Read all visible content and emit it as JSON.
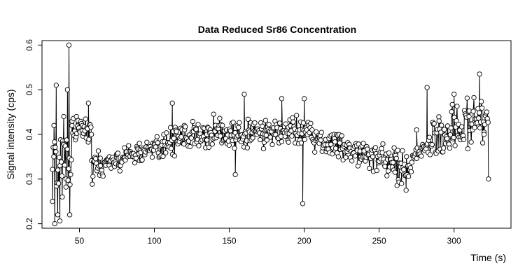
{
  "chart_data": {
    "type": "line",
    "title": "Data Reduced Sr86 Concentration",
    "xlabel": "Time (s)",
    "ylabel": "Signal intensity (cps)",
    "xlim": [
      25,
      338
    ],
    "ylim": [
      0.19,
      0.61
    ],
    "x_ticks": [
      50,
      100,
      150,
      200,
      250,
      300
    ],
    "y_ticks": [
      0.2,
      0.3,
      0.4,
      0.5,
      0.6
    ],
    "x_tick_labels": [
      "50",
      "100",
      "150",
      "200",
      "250",
      "300"
    ],
    "y_tick_labels": [
      "0.2",
      "0.3",
      "0.4",
      "0.5",
      "0.6"
    ],
    "series_style": "points connected by lines (open circles)",
    "key_points": [
      {
        "x": 32,
        "y": 0.25
      },
      {
        "x": 33,
        "y": 0.42
      },
      {
        "x": 33.5,
        "y": 0.2
      },
      {
        "x": 34.5,
        "y": 0.51
      },
      {
        "x": 35.5,
        "y": 0.22
      },
      {
        "x": 37,
        "y": 0.33
      },
      {
        "x": 38.5,
        "y": 0.26
      },
      {
        "x": 39.5,
        "y": 0.44
      },
      {
        "x": 41,
        "y": 0.3
      },
      {
        "x": 42,
        "y": 0.5
      },
      {
        "x": 43,
        "y": 0.6
      },
      {
        "x": 43.5,
        "y": 0.22
      },
      {
        "x": 45,
        "y": 0.42
      },
      {
        "x": 48,
        "y": 0.44
      },
      {
        "x": 52,
        "y": 0.42
      },
      {
        "x": 56,
        "y": 0.47
      },
      {
        "x": 58,
        "y": 0.4
      },
      {
        "x": 60,
        "y": 0.34
      },
      {
        "x": 64,
        "y": 0.33
      },
      {
        "x": 70,
        "y": 0.35
      },
      {
        "x": 80,
        "y": 0.37
      },
      {
        "x": 90,
        "y": 0.38
      },
      {
        "x": 100,
        "y": 0.38
      },
      {
        "x": 112,
        "y": 0.47
      },
      {
        "x": 120,
        "y": 0.42
      },
      {
        "x": 135,
        "y": 0.4
      },
      {
        "x": 150,
        "y": 0.41
      },
      {
        "x": 154,
        "y": 0.31
      },
      {
        "x": 160,
        "y": 0.49
      },
      {
        "x": 175,
        "y": 0.41
      },
      {
        "x": 185,
        "y": 0.48
      },
      {
        "x": 197,
        "y": 0.41
      },
      {
        "x": 199,
        "y": 0.245
      },
      {
        "x": 200,
        "y": 0.48
      },
      {
        "x": 210,
        "y": 0.38
      },
      {
        "x": 220,
        "y": 0.4
      },
      {
        "x": 230,
        "y": 0.37
      },
      {
        "x": 240,
        "y": 0.35
      },
      {
        "x": 250,
        "y": 0.34
      },
      {
        "x": 260,
        "y": 0.37
      },
      {
        "x": 265,
        "y": 0.29
      },
      {
        "x": 268,
        "y": 0.275
      },
      {
        "x": 275,
        "y": 0.41
      },
      {
        "x": 282,
        "y": 0.505
      },
      {
        "x": 290,
        "y": 0.43
      },
      {
        "x": 300,
        "y": 0.49
      },
      {
        "x": 310,
        "y": 0.44
      },
      {
        "x": 317,
        "y": 0.535
      },
      {
        "x": 320,
        "y": 0.4
      },
      {
        "x": 323,
        "y": 0.3
      }
    ],
    "x_range_of_data": [
      32,
      323
    ],
    "grid": false,
    "legend": "none"
  }
}
